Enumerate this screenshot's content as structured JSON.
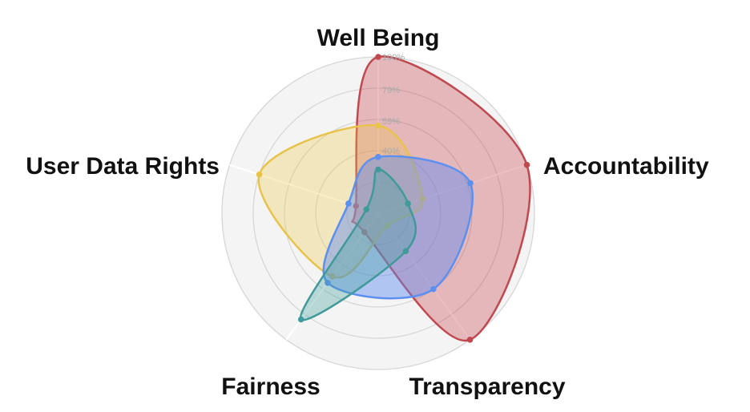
{
  "chart_data": {
    "type": "radar",
    "axes": [
      "Well Being",
      "Accountability",
      "Transparency",
      "Fairness",
      "User Data Rights"
    ],
    "tick_labels": [
      "40%",
      "59%",
      "79%",
      "100%"
    ],
    "rlim": [
      0,
      100
    ],
    "grid": true,
    "legend": "none",
    "series": [
      {
        "color": "#c0484e",
        "fill": "rgba(198,70,78,0.35)",
        "values": [
          100,
          100,
          100,
          15,
          15
        ]
      },
      {
        "color": "#e8c34a",
        "fill": "rgba(240,200,70,0.30)",
        "values": [
          56,
          30,
          10,
          50,
          80
        ]
      },
      {
        "color": "#5b8ff0",
        "fill": "rgba(95,140,240,0.45)",
        "values": [
          36,
          62,
          60,
          55,
          20
        ]
      },
      {
        "color": "#3f9a99",
        "fill": "rgba(70,160,160,0.35)",
        "values": [
          28,
          20,
          30,
          84,
          8
        ]
      }
    ]
  }
}
